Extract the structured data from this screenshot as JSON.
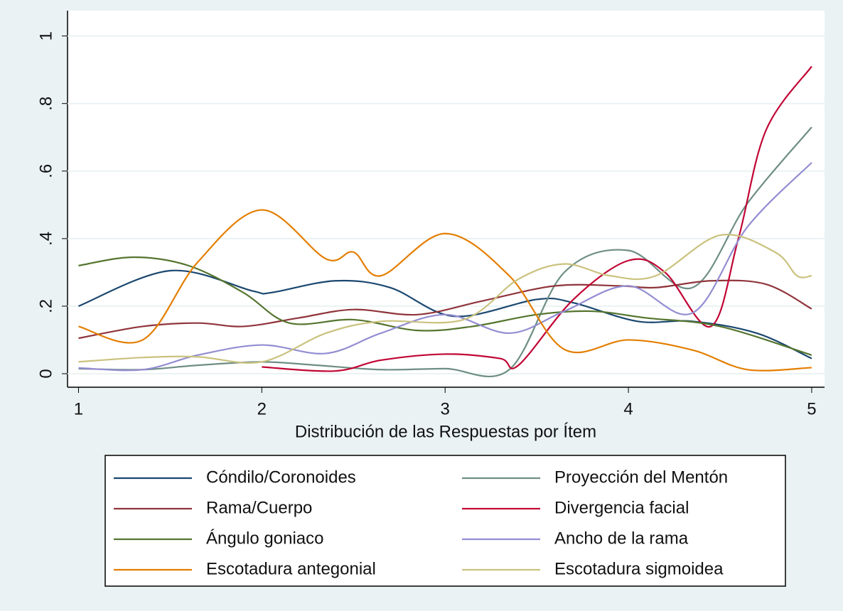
{
  "chart_data": {
    "type": "line",
    "xlabel": "Distribución de las Respuestas por Ítem",
    "xlim": [
      0.94,
      5.07
    ],
    "xticks": [
      1,
      2,
      3,
      4,
      5
    ],
    "ylim": [
      -0.04,
      1.075
    ],
    "yticks": [
      0,
      {
        "value": 0.2,
        "label": ".2"
      },
      {
        "value": 0.4,
        "label": ".4"
      },
      {
        "value": 0.6,
        "label": ".6"
      },
      {
        "value": 0.8,
        "label": ".8"
      },
      1
    ],
    "grid": true,
    "legend": "bottom",
    "series": [
      {
        "name": "Cóndilo/Coronoides",
        "color": "#1a476f",
        "x": [
          1,
          1.5,
          1.95,
          2.05,
          2.4,
          2.7,
          3.05,
          3.5,
          3.7,
          4.05,
          4.35,
          4.7,
          5
        ],
        "values": [
          0.2,
          0.305,
          0.245,
          0.24,
          0.275,
          0.255,
          0.17,
          0.22,
          0.21,
          0.155,
          0.155,
          0.12,
          0.045
        ]
      },
      {
        "name": "Proyección del Mentón",
        "color": "#6e8e84",
        "x": [
          1,
          1.35,
          1.65,
          2,
          2.3,
          2.65,
          3,
          3.35,
          3.65,
          4,
          4.35,
          4.65,
          5
        ],
        "values": [
          0.015,
          0.012,
          0.025,
          0.035,
          0.025,
          0.012,
          0.015,
          0.012,
          0.3,
          0.365,
          0.255,
          0.505,
          0.73
        ]
      },
      {
        "name": "Rama/Cuerpo",
        "color": "#90353b",
        "x": [
          1,
          1.35,
          1.65,
          1.9,
          2.2,
          2.5,
          2.85,
          3.2,
          3.6,
          3.95,
          4.15,
          4.45,
          4.75,
          5
        ],
        "values": [
          0.105,
          0.14,
          0.15,
          0.14,
          0.165,
          0.19,
          0.175,
          0.215,
          0.26,
          0.26,
          0.255,
          0.275,
          0.265,
          0.192
        ]
      },
      {
        "name": "Divergencia facial",
        "color": "#c10534",
        "x": [
          2,
          2.4,
          2.65,
          3,
          3.3,
          3.4,
          3.7,
          4,
          4.2,
          4.45,
          4.6,
          4.75,
          5
        ],
        "values": [
          0.02,
          0.008,
          0.04,
          0.058,
          0.045,
          0.025,
          0.22,
          0.335,
          0.3,
          0.14,
          0.4,
          0.72,
          0.91
        ]
      },
      {
        "name": "Ángulo goniaco",
        "color": "#55752f",
        "x": [
          1,
          1.3,
          1.6,
          1.9,
          2.15,
          2.5,
          2.85,
          3.15,
          3.5,
          3.8,
          4.1,
          4.5,
          5
        ],
        "values": [
          0.32,
          0.345,
          0.32,
          0.24,
          0.15,
          0.16,
          0.128,
          0.14,
          0.175,
          0.185,
          0.165,
          0.14,
          0.055
        ]
      },
      {
        "name": "Ancho de la rama",
        "color": "#938dd2",
        "x": [
          1,
          1.35,
          1.65,
          2,
          2.35,
          2.65,
          3,
          3.35,
          3.65,
          4,
          4.35,
          4.65,
          5
        ],
        "values": [
          0.017,
          0.012,
          0.055,
          0.085,
          0.06,
          0.12,
          0.175,
          0.12,
          0.185,
          0.26,
          0.18,
          0.435,
          0.625
        ]
      },
      {
        "name": "Escotadura antegonial",
        "color": "#e37e00",
        "x": [
          1,
          1.35,
          1.65,
          2,
          2.35,
          2.5,
          2.65,
          3,
          3.35,
          3.65,
          4,
          4.35,
          4.65,
          5
        ],
        "values": [
          0.14,
          0.1,
          0.33,
          0.485,
          0.34,
          0.36,
          0.29,
          0.415,
          0.29,
          0.072,
          0.1,
          0.07,
          0.012,
          0.018
        ]
      },
      {
        "name": "Escotadura sigmoidea",
        "color": "#cac27e",
        "x": [
          1,
          1.35,
          1.65,
          2,
          2.35,
          2.65,
          3.1,
          3.4,
          3.65,
          3.9,
          4.15,
          4.5,
          4.8,
          4.92,
          5
        ],
        "values": [
          0.035,
          0.048,
          0.05,
          0.035,
          0.12,
          0.155,
          0.16,
          0.28,
          0.325,
          0.29,
          0.29,
          0.41,
          0.36,
          0.29,
          0.29
        ]
      }
    ]
  }
}
